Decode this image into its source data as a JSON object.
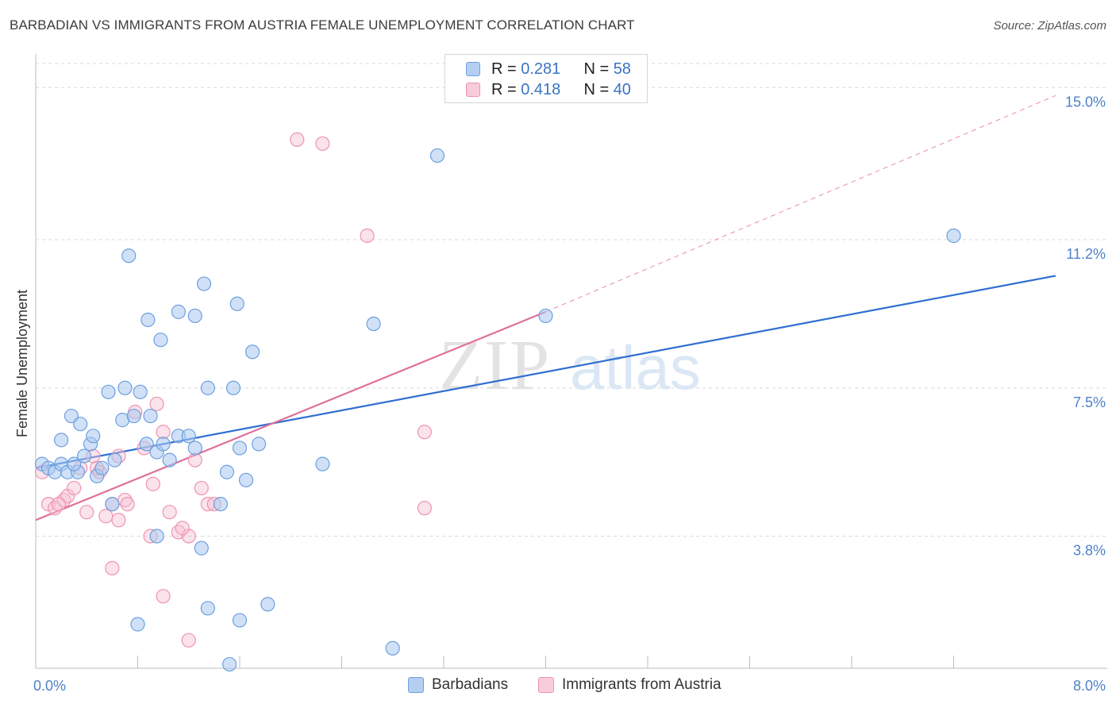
{
  "title": "BARBADIAN VS IMMIGRANTS FROM AUSTRIA FEMALE UNEMPLOYMENT CORRELATION CHART",
  "source": "Source: ZipAtlas.com",
  "colors": {
    "blue_fill": "#a9c8f0",
    "blue_stroke": "#6e9fdf",
    "blue_line": "#2f6fd1",
    "pink_fill": "#f6c2d2",
    "pink_stroke": "#ee93b0",
    "pink_line": "#e0709a",
    "grid": "#d9d9d9",
    "axis_label": "#4f82c9"
  },
  "legend": {
    "rows": [
      {
        "r_label": "R = ",
        "r_value": "0.281",
        "n_label": "N = ",
        "n_value": "58"
      },
      {
        "r_label": "R = ",
        "r_value": "0.418",
        "n_label": "N = ",
        "n_value": "40"
      }
    ]
  },
  "bottom_legend": {
    "series1": "Barbadians",
    "series2": "Immigrants from Austria"
  },
  "watermark": {
    "part1": "ZIP",
    "part2": "atlas"
  },
  "chart_data": {
    "type": "scatter",
    "title": "BARBADIAN VS IMMIGRANTS FROM AUSTRIA FEMALE UNEMPLOYMENT CORRELATION CHART",
    "xlabel": "",
    "ylabel": "Female Unemployment",
    "xlim": [
      0,
      8.0
    ],
    "ylim": [
      0.5,
      15.6
    ],
    "x_tick_labels": [
      {
        "value": 0,
        "label": "0.0%"
      },
      {
        "value": 8.0,
        "label": "8.0%"
      }
    ],
    "x_minor_ticks": [
      0.8,
      1.6,
      2.4,
      3.2,
      4.0,
      4.8,
      5.6,
      6.4,
      7.2
    ],
    "y_ticks": [
      {
        "value": 3.8,
        "label": "3.8%"
      },
      {
        "value": 7.5,
        "label": "7.5%"
      },
      {
        "value": 11.2,
        "label": "11.2%"
      },
      {
        "value": 15.0,
        "label": "15.0%"
      }
    ],
    "grid": true,
    "series": [
      {
        "name": "Barbadians",
        "R": 0.281,
        "N": 58,
        "trend": {
          "x0": 0.0,
          "y0": 5.5,
          "x1": 8.0,
          "y1": 10.3
        },
        "points": [
          [
            0.05,
            5.6
          ],
          [
            0.1,
            5.5
          ],
          [
            0.15,
            5.4
          ],
          [
            0.2,
            5.6
          ],
          [
            0.25,
            5.4
          ],
          [
            0.2,
            6.2
          ],
          [
            0.28,
            6.8
          ],
          [
            0.33,
            5.4
          ],
          [
            0.35,
            6.6
          ],
          [
            0.3,
            5.6
          ],
          [
            0.38,
            5.8
          ],
          [
            0.43,
            6.1
          ],
          [
            0.45,
            6.3
          ],
          [
            0.48,
            5.3
          ],
          [
            0.52,
            5.5
          ],
          [
            0.57,
            7.4
          ],
          [
            0.62,
            5.7
          ],
          [
            0.68,
            6.7
          ],
          [
            0.7,
            7.5
          ],
          [
            0.77,
            6.8
          ],
          [
            0.82,
            7.4
          ],
          [
            0.87,
            6.1
          ],
          [
            0.9,
            6.8
          ],
          [
            0.95,
            5.9
          ],
          [
            0.98,
            8.7
          ],
          [
            1.0,
            6.1
          ],
          [
            1.05,
            5.7
          ],
          [
            1.12,
            6.3
          ],
          [
            1.2,
            6.3
          ],
          [
            1.25,
            6.0
          ],
          [
            0.73,
            10.8
          ],
          [
            0.88,
            9.2
          ],
          [
            1.25,
            9.3
          ],
          [
            1.32,
            10.1
          ],
          [
            1.58,
            9.6
          ],
          [
            2.65,
            9.1
          ],
          [
            1.12,
            9.4
          ],
          [
            1.6,
            6.0
          ],
          [
            1.5,
            5.4
          ],
          [
            1.75,
            6.1
          ],
          [
            1.65,
            5.2
          ],
          [
            1.45,
            4.6
          ],
          [
            1.35,
            7.5
          ],
          [
            1.7,
            8.4
          ],
          [
            2.25,
            5.6
          ],
          [
            3.15,
            13.3
          ],
          [
            4.0,
            9.3
          ],
          [
            7.2,
            11.3
          ],
          [
            0.6,
            4.6
          ],
          [
            0.95,
            3.8
          ],
          [
            1.3,
            3.5
          ],
          [
            0.8,
            1.6
          ],
          [
            1.35,
            2.0
          ],
          [
            1.6,
            1.7
          ],
          [
            1.82,
            2.1
          ],
          [
            1.52,
            0.6
          ],
          [
            2.8,
            1.0
          ],
          [
            1.55,
            7.5
          ]
        ]
      },
      {
        "name": "Immigrants from Austria",
        "R": 0.418,
        "N": 40,
        "trend": {
          "x0": 0.0,
          "y0": 4.2,
          "x1": 4.0,
          "y1": 9.4
        },
        "trend_ext": {
          "x0": 4.0,
          "y0": 9.4,
          "x1": 8.0,
          "y1": 14.8
        },
        "points": [
          [
            0.05,
            5.4
          ],
          [
            0.1,
            4.6
          ],
          [
            0.15,
            4.5
          ],
          [
            0.22,
            4.7
          ],
          [
            0.25,
            4.8
          ],
          [
            0.3,
            5.0
          ],
          [
            0.35,
            5.5
          ],
          [
            0.45,
            5.8
          ],
          [
            0.5,
            5.4
          ],
          [
            0.55,
            4.3
          ],
          [
            0.6,
            4.6
          ],
          [
            0.65,
            5.8
          ],
          [
            0.7,
            4.7
          ],
          [
            0.78,
            6.9
          ],
          [
            0.85,
            6.0
          ],
          [
            0.92,
            5.1
          ],
          [
            0.95,
            7.1
          ],
          [
            1.0,
            6.4
          ],
          [
            1.05,
            4.4
          ],
          [
            1.12,
            3.9
          ],
          [
            1.25,
            5.7
          ],
          [
            1.3,
            5.0
          ],
          [
            1.35,
            4.6
          ],
          [
            1.2,
            3.8
          ],
          [
            0.65,
            4.2
          ],
          [
            0.9,
            3.8
          ],
          [
            0.6,
            3.0
          ],
          [
            1.0,
            2.3
          ],
          [
            1.2,
            1.2
          ],
          [
            2.05,
            13.7
          ],
          [
            2.25,
            13.6
          ],
          [
            2.6,
            11.3
          ],
          [
            3.05,
            6.4
          ],
          [
            3.05,
            4.5
          ],
          [
            0.4,
            4.4
          ],
          [
            0.48,
            5.5
          ],
          [
            0.72,
            4.6
          ],
          [
            1.15,
            4.0
          ],
          [
            1.4,
            4.6
          ],
          [
            0.18,
            4.6
          ]
        ]
      }
    ]
  }
}
